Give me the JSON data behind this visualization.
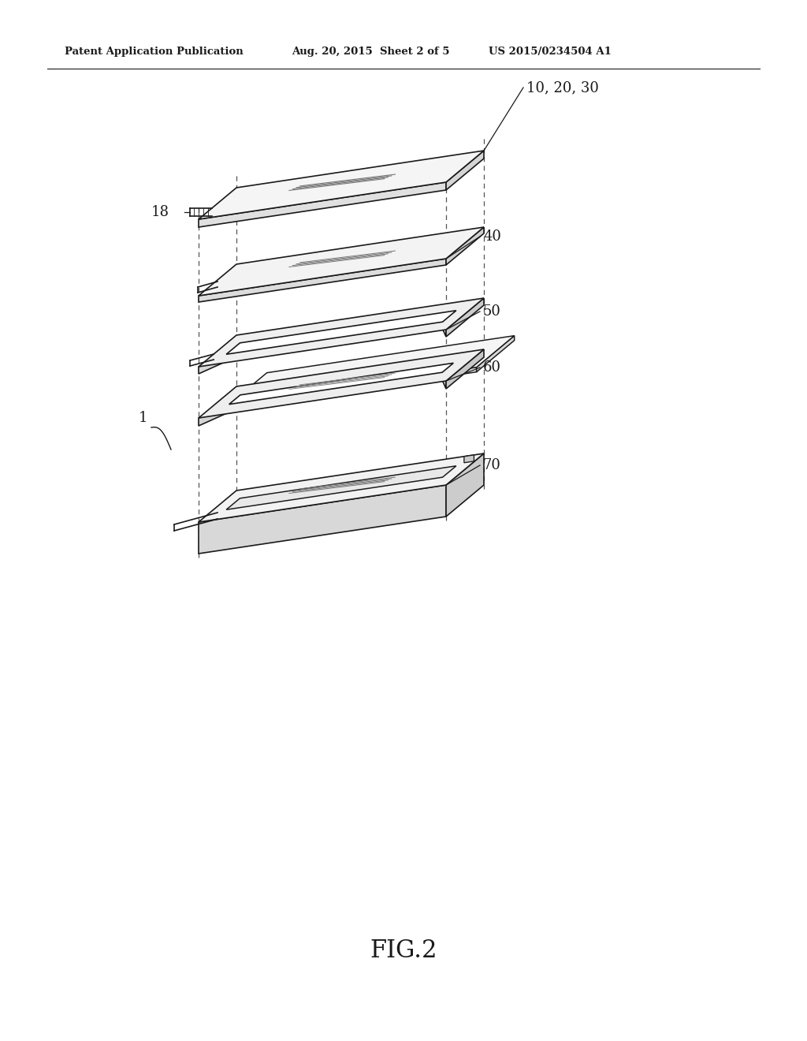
{
  "bg_color": "#ffffff",
  "line_color": "#1a1a1a",
  "header_left": "Patent Application Publication",
  "header_mid": "Aug. 20, 2015  Sheet 2 of 5",
  "header_right": "US 2015/0234504 A1",
  "figure_label": "FIG.2",
  "label_1": "1",
  "label_18": "18",
  "label_10_20_30": "10, 20, 30",
  "label_40": "40",
  "label_50": "50",
  "label_60": "60",
  "label_70": "70",
  "lw_main": 1.2,
  "lw_thin": 0.8,
  "fontsize_label": 13,
  "fontsize_header": 9.5,
  "fontsize_fig": 22
}
